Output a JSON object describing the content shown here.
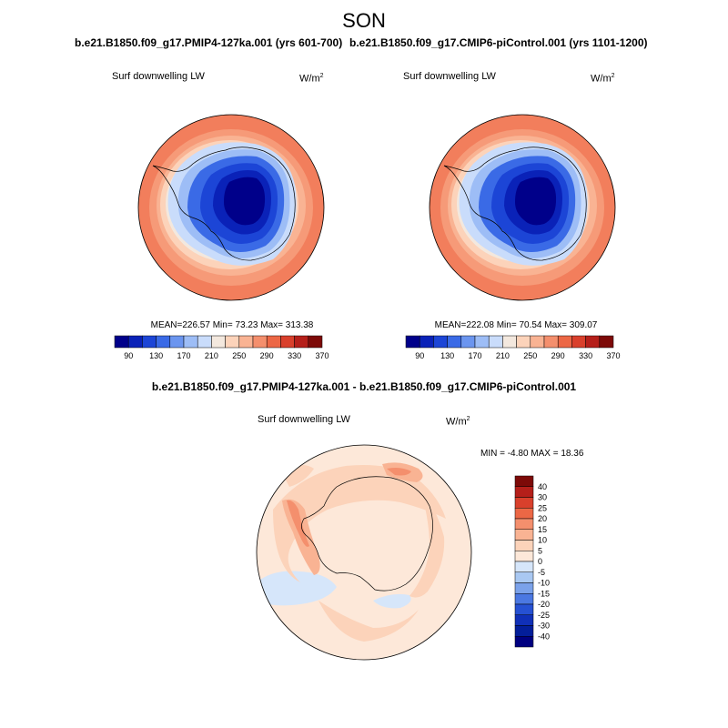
{
  "figure": {
    "season": "SON",
    "diff_title": "b.e21.B1850.f09_g17.PMIP4-127ka.001 - b.e21.B1850.f09_g17.CMIP6-piControl.001"
  },
  "panels": [
    {
      "title": "b.e21.B1850.f09_g17.PMIP4-127ka.001 (yrs 601-700)",
      "variable": "Surf downwelling LW",
      "units_base": "W/m",
      "units_exp": "2",
      "stats": {
        "mean_label": "MEAN=",
        "mean": "226.57",
        "min_label": "Min=",
        "min": "73.23",
        "max_label": "Max=",
        "max": "313.38"
      }
    },
    {
      "title": "b.e21.B1850.f09_g17.CMIP6-piControl.001 (yrs 1101-1200)",
      "variable": "Surf downwelling LW",
      "units_base": "W/m",
      "units_exp": "2",
      "stats": {
        "mean_label": "MEAN=",
        "mean": "222.08",
        "min_label": "Min=",
        "min": "70.54",
        "max_label": "Max=",
        "max": "309.07"
      }
    }
  ],
  "diff_panel": {
    "variable": "Surf downwelling LW",
    "units_base": "W/m",
    "units_exp": "2",
    "minmax": "MIN =  -4.80 MAX =  18.36"
  },
  "chart_data": [
    {
      "type": "heatmap",
      "projection": "south-polar-stereographic",
      "title": "b.e21.B1850.f09_g17.PMIP4-127ka.001 (yrs 601-700)",
      "colorbar_ticks": [
        "90",
        "130",
        "170",
        "210",
        "250",
        "290",
        "330",
        "370"
      ],
      "colorbar_colors": [
        "#00008a",
        "#0a22b8",
        "#1c45d6",
        "#3a6ae6",
        "#6b95ef",
        "#9dbdf6",
        "#c9dcfb",
        "#f3e8de",
        "#fcd3ba",
        "#f9b393",
        "#f48f6d",
        "#ec6745",
        "#d9402c",
        "#b51f1a",
        "#7d0a08"
      ],
      "stats": {
        "mean": 226.57,
        "min": 73.23,
        "max": 313.38
      }
    },
    {
      "type": "heatmap",
      "projection": "south-polar-stereographic",
      "title": "b.e21.B1850.f09_g17.CMIP6-piControl.001 (yrs 1101-1200)",
      "colorbar_ticks": [
        "90",
        "130",
        "170",
        "210",
        "250",
        "290",
        "330",
        "370"
      ],
      "colorbar_colors": [
        "#00008a",
        "#0a22b8",
        "#1c45d6",
        "#3a6ae6",
        "#6b95ef",
        "#9dbdf6",
        "#c9dcfb",
        "#f3e8de",
        "#fcd3ba",
        "#f9b393",
        "#f48f6d",
        "#ec6745",
        "#d9402c",
        "#b51f1a",
        "#7d0a08"
      ],
      "stats": {
        "mean": 222.08,
        "min": 70.54,
        "max": 309.07
      }
    },
    {
      "type": "heatmap",
      "projection": "south-polar-stereographic",
      "title": "b.e21.B1850.f09_g17.PMIP4-127ka.001 - b.e21.B1850.f09_g17.CMIP6-piControl.001",
      "colorbar_ticks": [
        "40",
        "30",
        "25",
        "20",
        "15",
        "10",
        "5",
        "0",
        "-5",
        "-10",
        "-15",
        "-20",
        "-25",
        "-30",
        "-40"
      ],
      "colorbar_colors": [
        "#7d0a08",
        "#b51f1a",
        "#d9402c",
        "#ec6745",
        "#f48f6d",
        "#f9b393",
        "#fcd3ba",
        "#fde8d9",
        "#d6e6fa",
        "#a9c8f2",
        "#7ba2ea",
        "#4b78e2",
        "#2651d3",
        "#1030b8",
        "#031e9a",
        "#000080"
      ],
      "stats": {
        "min": -4.8,
        "max": 18.36
      }
    }
  ]
}
